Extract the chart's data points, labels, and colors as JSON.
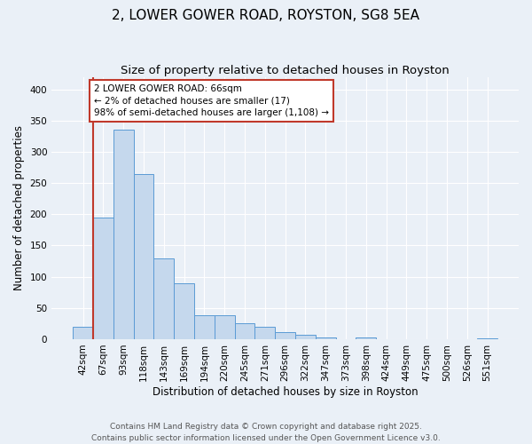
{
  "title": "2, LOWER GOWER ROAD, ROYSTON, SG8 5EA",
  "subtitle": "Size of property relative to detached houses in Royston",
  "xlabel": "Distribution of detached houses by size in Royston",
  "ylabel": "Number of detached properties",
  "footer_line1": "Contains HM Land Registry data © Crown copyright and database right 2025.",
  "footer_line2": "Contains public sector information licensed under the Open Government Licence v3.0.",
  "bar_labels": [
    "42sqm",
    "67sqm",
    "93sqm",
    "118sqm",
    "143sqm",
    "169sqm",
    "194sqm",
    "220sqm",
    "245sqm",
    "271sqm",
    "296sqm",
    "322sqm",
    "347sqm",
    "373sqm",
    "398sqm",
    "424sqm",
    "449sqm",
    "475sqm",
    "500sqm",
    "526sqm",
    "551sqm"
  ],
  "bar_values": [
    20,
    195,
    335,
    265,
    130,
    90,
    38,
    38,
    25,
    20,
    12,
    7,
    3,
    0,
    3,
    0,
    0,
    0,
    0,
    0,
    2
  ],
  "bar_color": "#c5d8ed",
  "bar_edge_color": "#5b9bd5",
  "annotation_line1": "2 LOWER GOWER ROAD: 66sqm",
  "annotation_line2": "← 2% of detached houses are smaller (17)",
  "annotation_line3": "98% of semi-detached houses are larger (1,108) →",
  "vline_color": "#c0392b",
  "annotation_box_color": "#c0392b",
  "background_color": "#eaf0f7",
  "plot_bg_color": "#eaf0f7",
  "ylim": [
    0,
    420
  ],
  "yticks": [
    0,
    50,
    100,
    150,
    200,
    250,
    300,
    350,
    400
  ],
  "grid_color": "#ffffff",
  "title_fontsize": 11,
  "subtitle_fontsize": 9.5,
  "axis_label_fontsize": 8.5,
  "tick_fontsize": 7.5,
  "annotation_fontsize": 7.5,
  "footer_fontsize": 6.5
}
